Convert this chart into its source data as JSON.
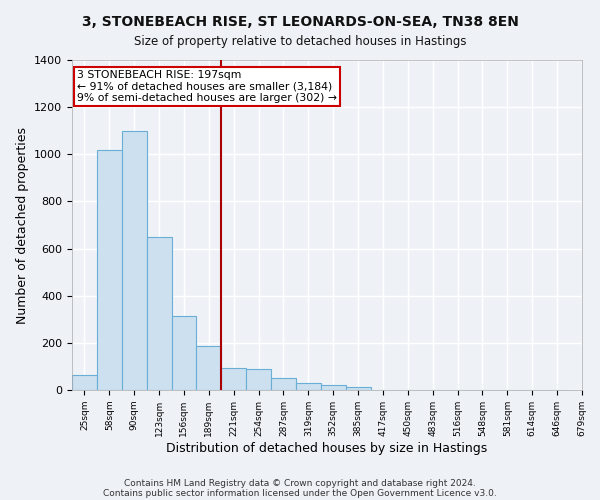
{
  "title1": "3, STONEBEACH RISE, ST LEONARDS-ON-SEA, TN38 8EN",
  "title2": "Size of property relative to detached houses in Hastings",
  "xlabel": "Distribution of detached houses by size in Hastings",
  "ylabel": "Number of detached properties",
  "bar_values": [
    65,
    1020,
    1100,
    650,
    315,
    185,
    95,
    90,
    50,
    30,
    20,
    12,
    0,
    0,
    0,
    0,
    0,
    0,
    0,
    0
  ],
  "bin_labels": [
    "25sqm",
    "58sqm",
    "90sqm",
    "123sqm",
    "156sqm",
    "189sqm",
    "221sqm",
    "254sqm",
    "287sqm",
    "319sqm",
    "352sqm",
    "385sqm",
    "417sqm",
    "450sqm",
    "483sqm",
    "516sqm",
    "548sqm",
    "581sqm",
    "614sqm",
    "646sqm",
    "679sqm"
  ],
  "bar_color": "#cce0f0",
  "bar_edge_color": "#6aaed6",
  "red_line_x": 5.5,
  "red_line_color": "#aa0000",
  "annotation_line1": "3 STONEBEACH RISE: 197sqm",
  "annotation_line2": "← 91% of detached houses are smaller (3,184)",
  "annotation_line3": "9% of semi-detached houses are larger (302) →",
  "annotation_box_color": "#ffffff",
  "annotation_box_edge": "#cc0000",
  "ylim": [
    0,
    1400
  ],
  "yticks": [
    0,
    200,
    400,
    600,
    800,
    1000,
    1200,
    1400
  ],
  "footnote1": "Contains HM Land Registry data © Crown copyright and database right 2024.",
  "footnote2": "Contains public sector information licensed under the Open Government Licence v3.0.",
  "bg_color": "#eef2f7",
  "grid_color": "#ffffff"
}
